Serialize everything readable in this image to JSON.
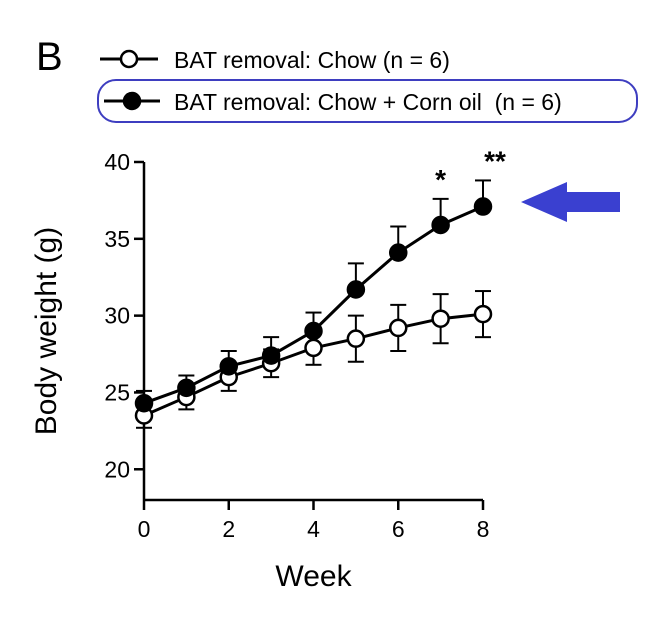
{
  "panel_label": "B",
  "chart_data": {
    "type": "line",
    "ylabel": "Body weight (g)",
    "xlabel": "Week",
    "x": [
      0,
      1,
      2,
      3,
      4,
      5,
      6,
      7,
      8
    ],
    "xlim": [
      0,
      8
    ],
    "ylim": [
      18,
      40
    ],
    "x_ticks": [
      0,
      2,
      4,
      6,
      8
    ],
    "y_ticks": [
      20,
      25,
      30,
      35,
      40
    ],
    "grid": false,
    "legend_placement": "top",
    "series": [
      {
        "name": "BAT removal: Chow (n = 6)",
        "marker": "open-circle",
        "values": [
          23.5,
          24.7,
          26.0,
          26.9,
          27.9,
          28.5,
          29.2,
          29.8,
          30.1
        ],
        "error": [
          0.8,
          0.8,
          0.9,
          0.9,
          1.1,
          1.5,
          1.5,
          1.6,
          1.5
        ]
      },
      {
        "name": "BAT removal: Chow + Corn oil  (n = 6)",
        "marker": "filled-circle",
        "values": [
          24.3,
          25.3,
          26.7,
          27.4,
          29.0,
          31.7,
          34.1,
          35.9,
          37.1
        ],
        "error": [
          0.8,
          0.8,
          1.0,
          1.2,
          1.2,
          1.7,
          1.7,
          1.7,
          1.7
        ]
      }
    ],
    "significance": [
      {
        "x": 7,
        "label": "*"
      },
      {
        "x": 8,
        "label": "**"
      }
    ]
  },
  "colors": {
    "highlight": "#3e3ec0",
    "arrow": "#3a40d0",
    "ink": "#000000"
  }
}
